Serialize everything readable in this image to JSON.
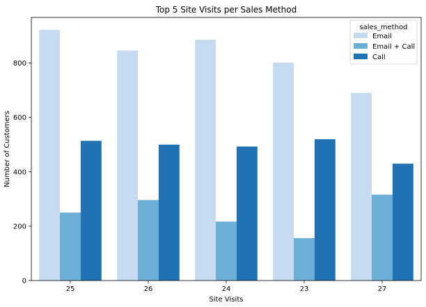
{
  "chart_data": {
    "type": "bar",
    "title": "Top 5 Site Visits per Sales Method",
    "xlabel": "Site Visits",
    "ylabel": "Number of Customers",
    "categories": [
      "25",
      "26",
      "24",
      "23",
      "27"
    ],
    "series": [
      {
        "name": "Email",
        "color": "#c6dbef",
        "values": [
          922,
          846,
          886,
          802,
          690
        ]
      },
      {
        "name": "Email + Call",
        "color": "#6baed6",
        "values": [
          250,
          296,
          217,
          156,
          316
        ]
      },
      {
        "name": "Call",
        "color": "#2171b5",
        "values": [
          514,
          500,
          493,
          520,
          430
        ]
      }
    ],
    "ylim": [
      0,
      968
    ],
    "yticks": [
      0,
      200,
      400,
      600,
      800
    ],
    "legend": {
      "title": "sales_method",
      "placement": "top-right"
    },
    "grid": false
  }
}
